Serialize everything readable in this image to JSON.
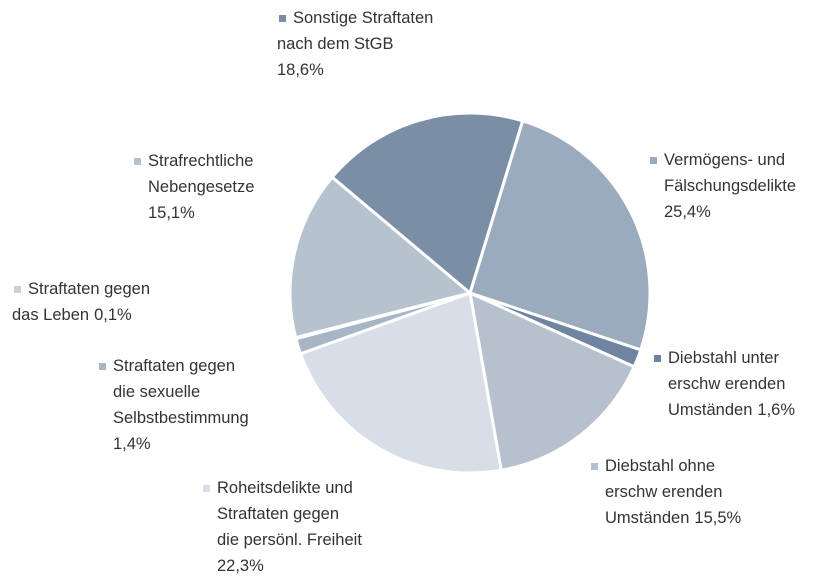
{
  "chart_data": {
    "type": "pie",
    "categories": [
      "Vermögens- und\nFälschungsdelikte",
      "Diebstahl unter\nerschw erenden\nUmständen",
      "Diebstahl ohne\nerschw erenden\nUmständen",
      "Roheitsdelikte und\nStraftaten gegen\ndie persönl. Freiheit",
      "Straftaten gegen\ndie sexuelle\nSelbstbestimmung",
      "Straftaten gegen\ndas Leben",
      "Strafrechtliche\nNebengesetze",
      "Sonstige Straftaten\nnach dem StGB"
    ],
    "values": [
      25.4,
      1.6,
      15.5,
      22.3,
      1.4,
      0.1,
      15.1,
      18.6
    ],
    "value_labels": [
      "25,4%",
      "1,6%",
      "15,5%",
      "22,3%",
      "1,4%",
      "0,1%",
      "15,1%",
      "18,6%"
    ],
    "colors": [
      "#9aabbd",
      "#6e84a0",
      "#b6c1cd",
      "#d8dee7",
      "#a7b5c5",
      "#c8d0da",
      "#b7c2cf",
      "#7a8ea6"
    ]
  }
}
